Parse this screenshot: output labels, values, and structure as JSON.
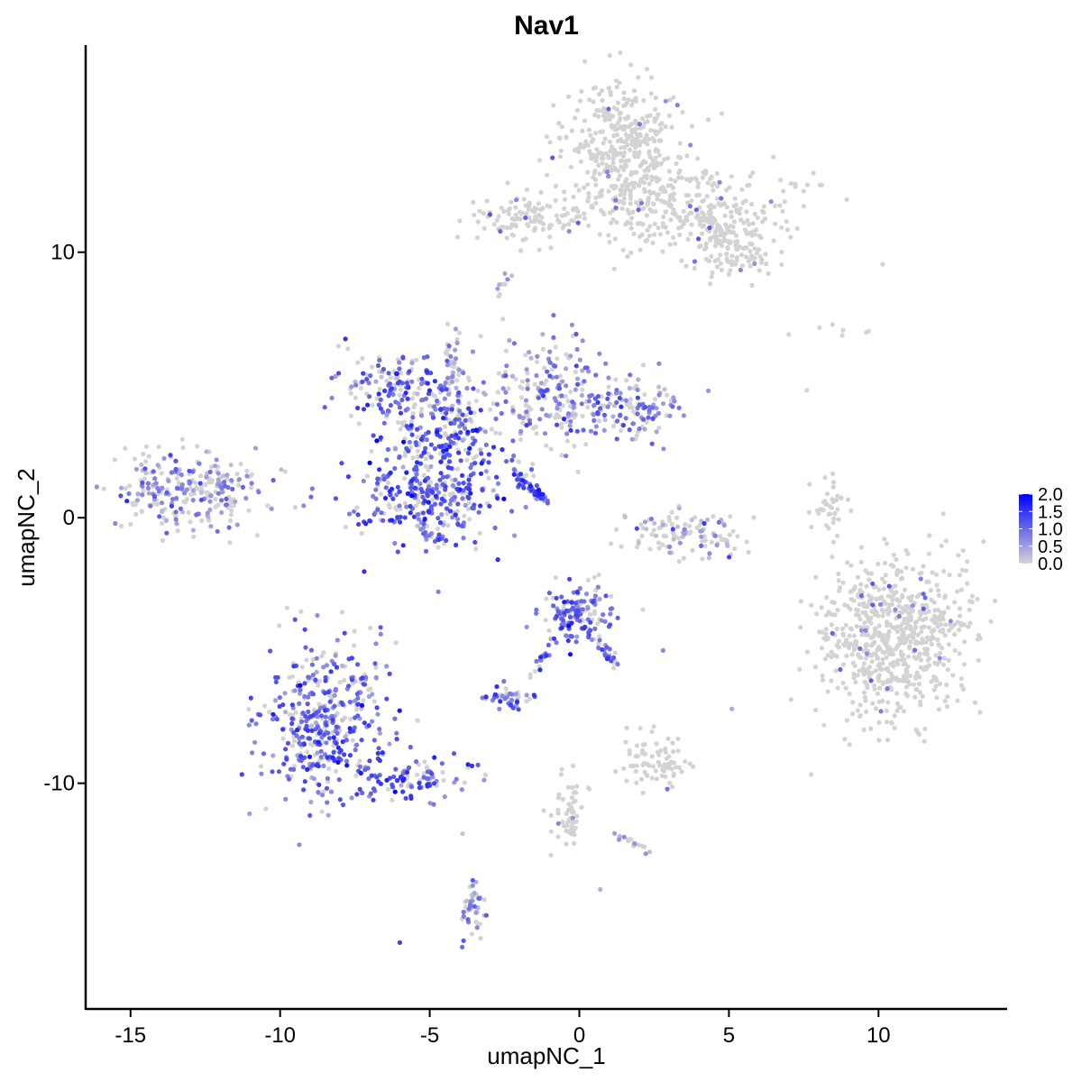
{
  "chart_data": {
    "type": "scatter",
    "title": "Nav1",
    "xlabel": "umapNC_1",
    "ylabel": "umapNC_2",
    "xlim": [
      -16.5,
      14.3
    ],
    "ylim": [
      -18.5,
      17.8
    ],
    "x_ticks": [
      -15,
      -10,
      -5,
      0,
      5,
      10
    ],
    "y_ticks": [
      -10,
      0,
      10
    ],
    "x_tick_labels": [
      "-15",
      "-10",
      "-5",
      "0",
      "5",
      "10"
    ],
    "y_tick_labels": [
      "-10",
      "0",
      "10"
    ],
    "grid": false,
    "color_scale": {
      "low_color": "#d3d3d3",
      "high_color": "#0000ff",
      "min": 0.0,
      "max": 2.0,
      "tick_values": [
        2.0,
        1.5,
        1.0,
        0.5,
        0.0
      ],
      "tick_labels": [
        "2.0",
        "1.5",
        "1.0",
        "0.5",
        "0.0"
      ],
      "legend_position": "right"
    },
    "clusters": [
      {
        "id": "c1",
        "cx": 1.5,
        "cy": 14.0,
        "sx": 1.0,
        "sy": 1.3,
        "n": 380,
        "mean_expr": 0.02
      },
      {
        "id": "c2",
        "cx": 3.8,
        "cy": 11.6,
        "sx": 1.7,
        "sy": 0.9,
        "n": 300,
        "mean_expr": 0.02
      },
      {
        "id": "c3",
        "cx": -1.8,
        "cy": 11.3,
        "sx": 1.2,
        "sy": 0.45,
        "n": 120,
        "mean_expr": 0.03
      },
      {
        "id": "c4",
        "cx": 5.5,
        "cy": 9.9,
        "sx": 0.6,
        "sy": 0.4,
        "n": 50,
        "mean_expr": 0.03
      },
      {
        "id": "c5",
        "cx": -13.0,
        "cy": 1.0,
        "sx": 1.3,
        "sy": 0.75,
        "n": 280,
        "mean_expr": 0.45
      },
      {
        "id": "c6",
        "cx": -6.3,
        "cy": 5.0,
        "sx": 1.0,
        "sy": 0.55,
        "n": 120,
        "mean_expr": 0.75
      },
      {
        "id": "c7",
        "cx": -4.6,
        "cy": 3.3,
        "sx": 1.0,
        "sy": 1.1,
        "n": 260,
        "mean_expr": 0.85
      },
      {
        "id": "c8",
        "cx": -5.0,
        "cy": 0.7,
        "sx": 1.2,
        "sy": 0.9,
        "n": 300,
        "mean_expr": 0.85
      },
      {
        "id": "c9",
        "cx": -1.0,
        "cy": 4.6,
        "sx": 0.9,
        "sy": 1.1,
        "n": 180,
        "mean_expr": 0.6
      },
      {
        "id": "c10",
        "cx": 1.4,
        "cy": 4.0,
        "sx": 1.0,
        "sy": 0.6,
        "n": 140,
        "mean_expr": 0.5
      },
      {
        "id": "c11",
        "cx": 3.5,
        "cy": -0.6,
        "sx": 1.0,
        "sy": 0.45,
        "n": 110,
        "mean_expr": 0.25
      },
      {
        "id": "c12",
        "cx": 0.0,
        "cy": -3.6,
        "sx": 0.6,
        "sy": 0.55,
        "n": 140,
        "mean_expr": 0.8
      },
      {
        "id": "c13",
        "cx": -2.4,
        "cy": -6.8,
        "sx": 0.35,
        "sy": 0.25,
        "n": 45,
        "mean_expr": 0.8
      },
      {
        "id": "c14",
        "cx": 2.6,
        "cy": -9.2,
        "sx": 0.6,
        "sy": 0.5,
        "n": 80,
        "mean_expr": 0.03
      },
      {
        "id": "c15",
        "cx": -8.5,
        "cy": -7.8,
        "sx": 1.0,
        "sy": 1.6,
        "n": 440,
        "mean_expr": 0.75
      },
      {
        "id": "c16",
        "cx": -5.5,
        "cy": -9.8,
        "sx": 1.0,
        "sy": 0.35,
        "n": 90,
        "mean_expr": 0.9
      },
      {
        "id": "c17",
        "cx": 10.5,
        "cy": -4.5,
        "sx": 1.3,
        "sy": 1.5,
        "n": 700,
        "mean_expr": 0.01
      },
      {
        "id": "c18",
        "cx": 8.3,
        "cy": 0.4,
        "sx": 0.25,
        "sy": 0.6,
        "n": 40,
        "mean_expr": 0.02
      },
      {
        "id": "c19",
        "cx": -3.5,
        "cy": -14.8,
        "sx": 0.25,
        "sy": 0.6,
        "n": 35,
        "mean_expr": 0.35
      },
      {
        "id": "c20",
        "cx": -0.4,
        "cy": -11.2,
        "sx": 0.3,
        "sy": 0.8,
        "n": 40,
        "mean_expr": 0.05
      }
    ],
    "streaks": [
      {
        "id": "s1",
        "from": [
          -4.3,
          4.8
        ],
        "to": [
          -4.2,
          7.3
        ],
        "n": 30,
        "spread": 0.12,
        "mean_expr": 0.3
      },
      {
        "id": "s2",
        "from": [
          -2.3,
          1.7
        ],
        "to": [
          -1.2,
          0.7
        ],
        "n": 40,
        "spread": 0.1,
        "mean_expr": 0.9
      },
      {
        "id": "s3",
        "from": [
          -1.5,
          0.9
        ],
        "to": [
          -0.9,
          0.5
        ],
        "n": 10,
        "spread": 0.05,
        "mean_expr": 1.0
      },
      {
        "id": "s4",
        "from": [
          0.3,
          -4.4
        ],
        "to": [
          1.3,
          -5.5
        ],
        "n": 25,
        "spread": 0.12,
        "mean_expr": 0.85
      },
      {
        "id": "s5",
        "from": [
          -0.8,
          -4.5
        ],
        "to": [
          -1.6,
          -6.0
        ],
        "n": 18,
        "spread": 0.1,
        "mean_expr": 0.8
      },
      {
        "id": "s6",
        "from": [
          -2.4,
          9.2
        ],
        "to": [
          -2.8,
          8.4
        ],
        "n": 10,
        "spread": 0.08,
        "mean_expr": 0.2
      },
      {
        "id": "s7",
        "from": [
          4.0,
          11.5
        ],
        "to": [
          5.8,
          9.6
        ],
        "n": 60,
        "spread": 0.25,
        "mean_expr": 0.03
      },
      {
        "id": "s8",
        "from": [
          -0.2,
          -10.1
        ],
        "to": [
          -0.3,
          -12.0
        ],
        "n": 20,
        "spread": 0.08,
        "mean_expr": 0.05
      },
      {
        "id": "s9",
        "from": [
          1.2,
          -12.0
        ],
        "to": [
          2.5,
          -12.6
        ],
        "n": 15,
        "spread": 0.08,
        "mean_expr": 0.2
      },
      {
        "id": "s10",
        "from": [
          -3.6,
          -13.6
        ],
        "to": [
          -3.4,
          -15.2
        ],
        "n": 12,
        "spread": 0.06,
        "mean_expr": 0.4
      },
      {
        "id": "s11",
        "from": [
          7.5,
          7.2
        ],
        "to": [
          10.0,
          6.9
        ],
        "n": 6,
        "spread": 0.1,
        "mean_expr": 0.02
      },
      {
        "id": "s12",
        "from": [
          -4.5,
          6.1
        ],
        "to": [
          -3.7,
          5.2
        ],
        "n": 14,
        "spread": 0.1,
        "mean_expr": 0.35
      }
    ],
    "outliers": [
      {
        "x": -6.0,
        "y": -16.0,
        "expr": 1.4
      },
      {
        "x": 5.1,
        "y": -7.2,
        "expr": 0.4
      },
      {
        "x": 2.8,
        "y": -5.0,
        "expr": 0.7
      },
      {
        "x": 0.7,
        "y": -14.0,
        "expr": 0.3
      },
      {
        "x": -3.9,
        "y": -11.9,
        "expr": 0.1
      },
      {
        "x": 7.0,
        "y": 6.9,
        "expr": 0.0
      },
      {
        "x": 7.6,
        "y": 4.8,
        "expr": 0.0
      }
    ]
  }
}
